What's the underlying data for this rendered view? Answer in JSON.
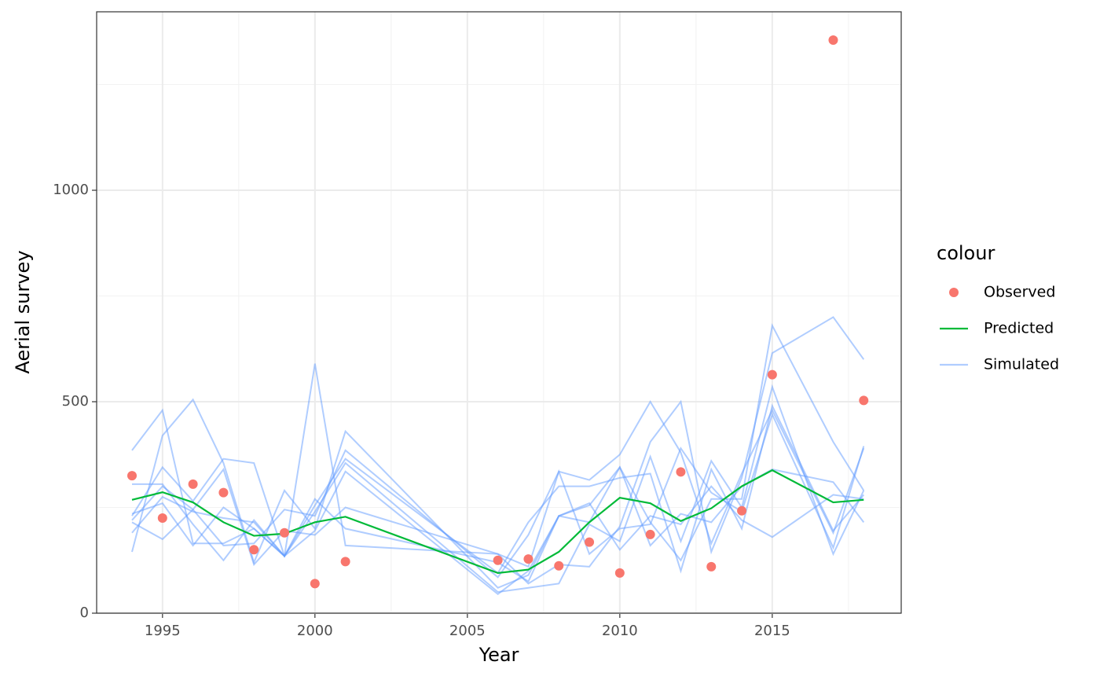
{
  "chart_data": {
    "type": "line",
    "x_label": "Year",
    "y_label": "Aerial survey",
    "legend_title": "colour",
    "legend_position": "right",
    "x": [
      1994,
      1995,
      1996,
      1997,
      1998,
      1999,
      2000,
      2001,
      2006,
      2007,
      2008,
      2009,
      2010,
      2011,
      2012,
      2013,
      2014,
      2015,
      2017,
      2018
    ],
    "series": [
      {
        "name": "Observed",
        "style": "points",
        "color": "#F8766D",
        "values": [
          325,
          225,
          305,
          285,
          150,
          190,
          70,
          122,
          125,
          128,
          112,
          168,
          95,
          186,
          334,
          110,
          242,
          564,
          1355,
          503
        ]
      },
      {
        "name": "Predicted",
        "style": "line",
        "color": "#00BA38",
        "values": [
          268,
          286,
          262,
          215,
          183,
          188,
          215,
          228,
          95,
          103,
          145,
          215,
          273,
          260,
          218,
          248,
          300,
          338,
          262,
          268
        ]
      },
      {
        "name": "Simulated",
        "style": "runs",
        "color": "#619CFF",
        "runs": [
          [
            385,
            480,
            165,
            165,
            200,
            135,
            590,
            160,
            140,
            70,
            115,
            110,
            205,
            405,
            500,
            145,
            320,
            615,
            700,
            600
          ],
          [
            145,
            420,
            505,
            355,
            120,
            290,
            200,
            430,
            60,
            90,
            230,
            215,
            345,
            215,
            125,
            270,
            270,
            680,
            405,
            290
          ],
          [
            220,
            300,
            245,
            160,
            165,
            245,
            230,
            385,
            85,
            185,
            335,
            315,
            375,
            500,
            380,
            165,
            330,
            480,
            190,
            390
          ],
          [
            230,
            345,
            265,
            365,
            355,
            135,
            255,
            365,
            95,
            215,
            300,
            300,
            320,
            330,
            100,
            340,
            200,
            490,
            195,
            280
          ],
          [
            305,
            305,
            210,
            125,
            220,
            135,
            240,
            355,
            50,
            60,
            70,
            210,
            170,
            370,
            170,
            360,
            250,
            535,
            140,
            290
          ],
          [
            190,
            275,
            240,
            225,
            215,
            135,
            195,
            335,
            45,
            100,
            230,
            255,
            345,
            160,
            235,
            215,
            300,
            340,
            310,
            215
          ],
          [
            215,
            175,
            245,
            340,
            115,
            195,
            185,
            250,
            140,
            110,
            335,
            140,
            200,
            210,
            390,
            285,
            240,
            470,
            155,
            395
          ],
          [
            235,
            260,
            160,
            250,
            200,
            135,
            270,
            200,
            120,
            75,
            230,
            260,
            150,
            230,
            210,
            300,
            220,
            180,
            280,
            270
          ]
        ]
      }
    ],
    "xlim": [
      1992.84,
      2019.23
    ],
    "xticks": [
      1995,
      2000,
      2005,
      2010,
      2015
    ],
    "x_minor_ticks": [
      1997.5,
      2002.5,
      2007.5,
      2012.5,
      2017.5
    ],
    "ylim": [
      0,
      1422
    ],
    "yticks": [
      0,
      500,
      1000
    ],
    "y_minor_ticks": [
      250,
      750,
      1250
    ],
    "grid": true
  }
}
